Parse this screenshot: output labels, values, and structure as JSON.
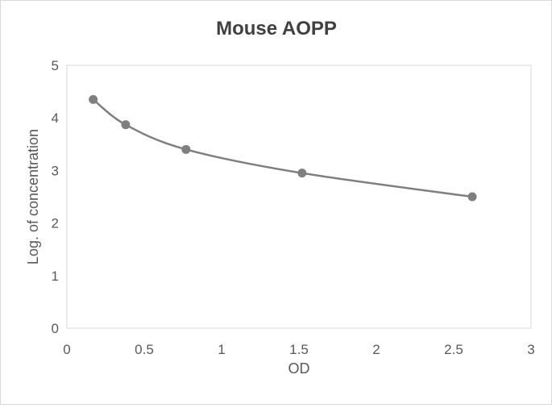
{
  "chart_data": {
    "type": "scatter",
    "title": "Mouse AOPP",
    "xlabel": "OD",
    "ylabel": "Log. of concentration",
    "xlim": [
      0,
      3
    ],
    "ylim": [
      0,
      5
    ],
    "xticks": [
      "0",
      "0.5",
      "1",
      "1.5",
      "2",
      "2.5",
      "3"
    ],
    "yticks": [
      "0",
      "1",
      "2",
      "3",
      "4",
      "5"
    ],
    "grid": false,
    "legend": "none",
    "line": "smooth",
    "color": "#7f7f7f",
    "x": [
      0.17,
      0.38,
      0.77,
      1.52,
      2.62
    ],
    "y": [
      4.35,
      3.87,
      3.4,
      2.95,
      2.5
    ]
  }
}
